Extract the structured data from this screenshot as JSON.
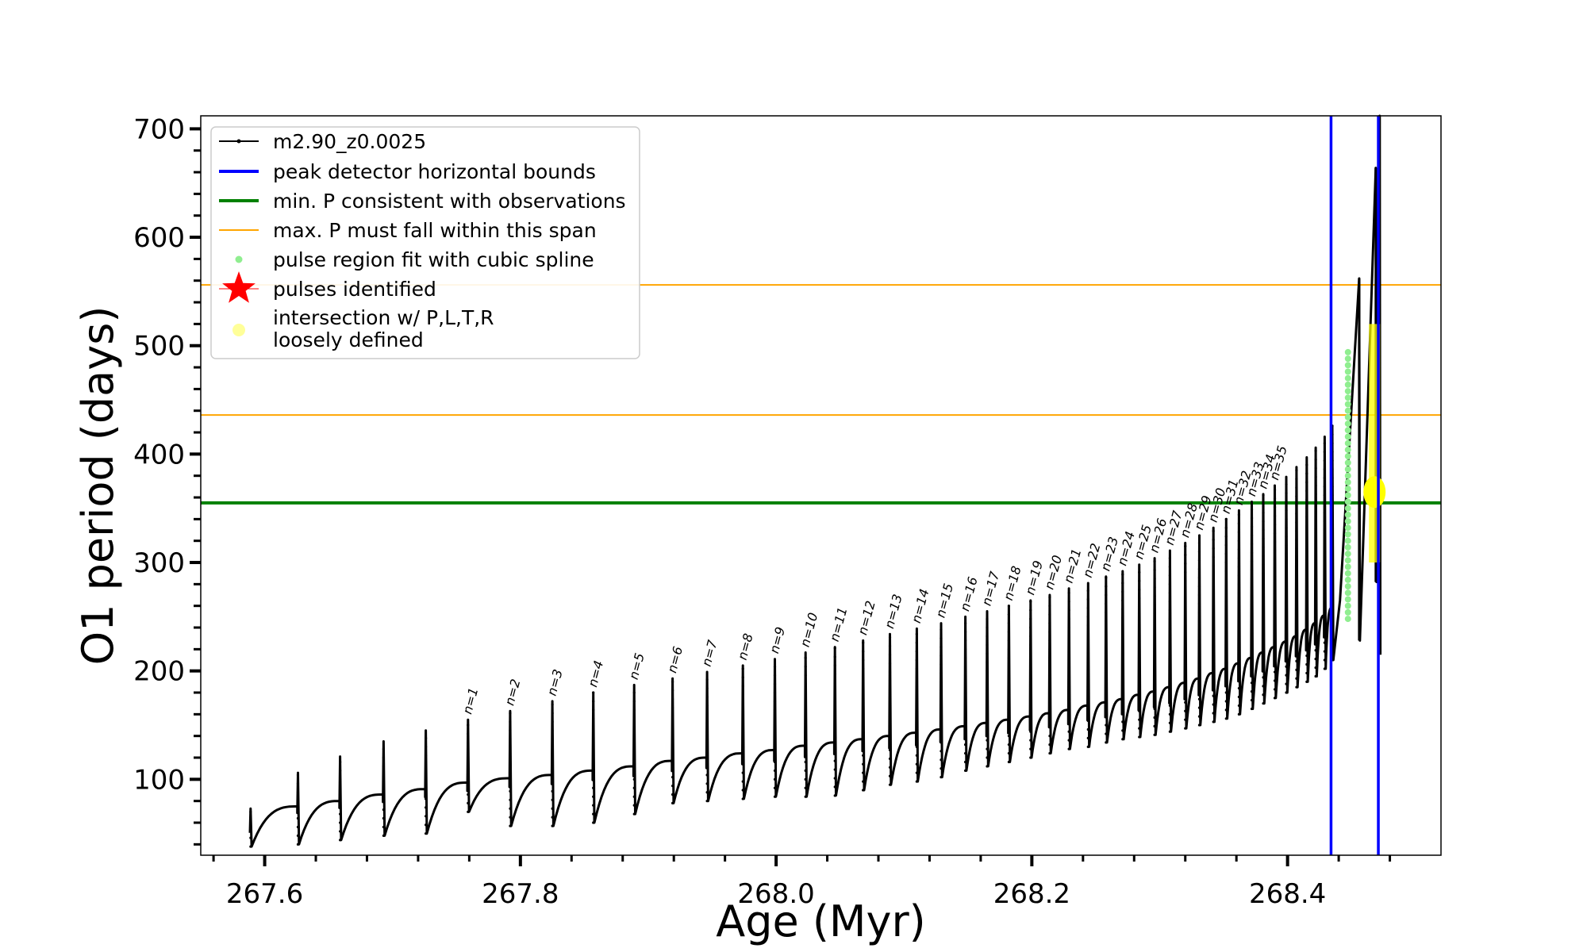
{
  "chart_data": {
    "type": "line",
    "title": "",
    "xlabel": "Age (Myr)",
    "ylabel": "O1 period (days)",
    "xlim": [
      267.55,
      268.52
    ],
    "ylim": [
      30,
      712
    ],
    "x_ticks": [
      {
        "value": 267.6,
        "label": "267.6"
      },
      {
        "value": 267.8,
        "label": "267.8"
      },
      {
        "value": 268.0,
        "label": "268.0"
      },
      {
        "value": 268.2,
        "label": "268.2"
      },
      {
        "value": 268.4,
        "label": "268.4"
      }
    ],
    "y_ticks": [
      {
        "value": 100,
        "label": "100"
      },
      {
        "value": 200,
        "label": "200"
      },
      {
        "value": 300,
        "label": "300"
      },
      {
        "value": 400,
        "label": "400"
      },
      {
        "value": 500,
        "label": "500"
      },
      {
        "value": 600,
        "label": "600"
      },
      {
        "value": 700,
        "label": "700"
      }
    ],
    "grid": false,
    "legend_position": "top-left",
    "series": [
      {
        "name": "m2.90_z0.0025",
        "color": "#000000",
        "kind": "line-with-points"
      },
      {
        "name": "peak detector horizontal bounds",
        "color": "#0000ff",
        "kind": "vline",
        "values": [
          268.434,
          268.471
        ]
      },
      {
        "name": "min. P consistent with observations",
        "color": "#008000",
        "kind": "hline",
        "values": [
          355
        ]
      },
      {
        "name": "max. P must fall within this span",
        "color": "#ffa500",
        "kind": "hline",
        "values": [
          436,
          556
        ]
      },
      {
        "name": "pulse region fit with cubic spline",
        "color": "#90ee90",
        "kind": "marker-dot"
      },
      {
        "name": "pulses identified",
        "color": "#ff0000",
        "kind": "marker-star"
      },
      {
        "name": "intersection w/ P,L,T,R\nloosely defined",
        "color": "#ffff99",
        "kind": "marker-dot"
      }
    ],
    "pulses": [
      {
        "n": "n=1",
        "age": 267.759,
        "peak": 155,
        "pre": 97,
        "dip": 70
      },
      {
        "n": "n=2",
        "age": 267.792,
        "peak": 163,
        "pre": 101,
        "dip": 57
      },
      {
        "n": "n=3",
        "age": 267.825,
        "peak": 172,
        "pre": 104,
        "dip": 57
      },
      {
        "n": "n=4",
        "age": 267.857,
        "peak": 180,
        "pre": 108,
        "dip": 60
      },
      {
        "n": "n=5",
        "age": 267.889,
        "peak": 187,
        "pre": 112,
        "dip": 68
      },
      {
        "n": "n=6",
        "age": 267.919,
        "peak": 193,
        "pre": 117,
        "dip": 78
      },
      {
        "n": "n=7",
        "age": 267.946,
        "peak": 199,
        "pre": 120,
        "dip": 80
      },
      {
        "n": "n=8",
        "age": 267.974,
        "peak": 205,
        "pre": 124,
        "dip": 82
      },
      {
        "n": "n=9",
        "age": 267.999,
        "peak": 211,
        "pre": 127,
        "dip": 84
      },
      {
        "n": "n=10",
        "age": 268.023,
        "peak": 217,
        "pre": 131,
        "dip": 84
      },
      {
        "n": "n=11",
        "age": 268.046,
        "peak": 222,
        "pre": 134,
        "dip": 85
      },
      {
        "n": "n=12",
        "age": 268.068,
        "peak": 228,
        "pre": 137,
        "dip": 90
      },
      {
        "n": "n=13",
        "age": 268.089,
        "peak": 234,
        "pre": 140,
        "dip": 95
      },
      {
        "n": "n=14",
        "age": 268.11,
        "peak": 239,
        "pre": 143,
        "dip": 98
      },
      {
        "n": "n=15",
        "age": 268.129,
        "peak": 244,
        "pre": 146,
        "dip": 102
      },
      {
        "n": "n=16",
        "age": 268.148,
        "peak": 250,
        "pre": 149,
        "dip": 108
      },
      {
        "n": "n=17",
        "age": 268.165,
        "peak": 255,
        "pre": 152,
        "dip": 112
      },
      {
        "n": "n=18",
        "age": 268.182,
        "peak": 260,
        "pre": 155,
        "dip": 116
      },
      {
        "n": "n=19",
        "age": 268.199,
        "peak": 265,
        "pre": 158,
        "dip": 120
      },
      {
        "n": "n=20",
        "age": 268.214,
        "peak": 270,
        "pre": 161,
        "dip": 124
      },
      {
        "n": "n=21",
        "age": 268.229,
        "peak": 276,
        "pre": 164,
        "dip": 128
      },
      {
        "n": "n=22",
        "age": 268.244,
        "peak": 281,
        "pre": 168,
        "dip": 130
      },
      {
        "n": "n=23",
        "age": 268.258,
        "peak": 287,
        "pre": 171,
        "dip": 134
      },
      {
        "n": "n=24",
        "age": 268.271,
        "peak": 292,
        "pre": 174,
        "dip": 137
      },
      {
        "n": "n=25",
        "age": 268.284,
        "peak": 298,
        "pre": 178,
        "dip": 139
      },
      {
        "n": "n=26",
        "age": 268.296,
        "peak": 304,
        "pre": 181,
        "dip": 141
      },
      {
        "n": "n=27",
        "age": 268.308,
        "peak": 311,
        "pre": 185,
        "dip": 144
      },
      {
        "n": "n=28",
        "age": 268.32,
        "peak": 318,
        "pre": 189,
        "dip": 147
      },
      {
        "n": "n=29",
        "age": 268.331,
        "peak": 325,
        "pre": 193,
        "dip": 150
      },
      {
        "n": "n=30",
        "age": 268.342,
        "peak": 332,
        "pre": 198,
        "dip": 153
      },
      {
        "n": "n=31",
        "age": 268.352,
        "peak": 340,
        "pre": 202,
        "dip": 156
      },
      {
        "n": "n=32",
        "age": 268.362,
        "peak": 348,
        "pre": 207,
        "dip": 160
      },
      {
        "n": "n=33",
        "age": 268.372,
        "peak": 356,
        "pre": 212,
        "dip": 165
      },
      {
        "n": "n=34",
        "age": 268.381,
        "peak": 363,
        "pre": 217,
        "dip": 170
      },
      {
        "n": "n=35",
        "age": 268.39,
        "peak": 371,
        "pre": 222,
        "dip": 175
      }
    ],
    "extra_pulses": [
      {
        "age": 268.399,
        "peak": 379,
        "pre": 227,
        "dip": 180
      },
      {
        "age": 268.407,
        "peak": 388,
        "pre": 232,
        "dip": 185
      },
      {
        "age": 268.415,
        "peak": 397,
        "pre": 238,
        "dip": 190
      },
      {
        "age": 268.422,
        "peak": 406,
        "pre": 244,
        "dip": 195
      },
      {
        "age": 268.429,
        "peak": 416,
        "pre": 251,
        "dip": 202
      },
      {
        "age": 268.435,
        "peak": 426,
        "pre": 258,
        "dip": 210
      }
    ],
    "pulse_label_text": [
      {
        "text": "n=1",
        "age": 267.759
      },
      {
        "text": "n=2",
        "age": 267.792
      },
      {
        "text": "n=3",
        "age": 267.825
      },
      {
        "text": "n=4",
        "age": 267.857
      },
      {
        "text": "n=5",
        "age": 267.889
      },
      {
        "text": "n=6",
        "age": 267.919
      },
      {
        "text": "n=7",
        "age": 267.946
      },
      {
        "text": "n=8",
        "age": 267.974
      },
      {
        "text": "n=9",
        "age": 267.999
      },
      {
        "text": "n=10",
        "age": 268.023
      },
      {
        "text": "n=11",
        "age": 268.046
      },
      {
        "text": "n=12",
        "age": 268.068
      },
      {
        "text": "n=13",
        "age": 268.089
      },
      {
        "text": "n=14",
        "age": 268.11
      },
      {
        "text": "n=15",
        "age": 268.129
      },
      {
        "text": "n=16",
        "age": 268.148
      },
      {
        "text": "n=17",
        "age": 268.165
      },
      {
        "text": "n=18",
        "age": 268.182
      },
      {
        "text": "n=19",
        "age": 268.199
      },
      {
        "text": "n=20",
        "age": 268.214
      },
      {
        "text": "n=21",
        "age": 268.229
      },
      {
        "text": "n=22",
        "age": 268.244
      },
      {
        "text": "n=23",
        "age": 268.258
      },
      {
        "text": "n=24",
        "age": 268.271
      },
      {
        "text": "n=25",
        "age": 268.284
      },
      {
        "text": "n=26",
        "age": 268.296
      },
      {
        "text": "n=27",
        "age": 268.308
      },
      {
        "text": "n=28",
        "age": 268.32
      },
      {
        "text": "n=29",
        "age": 268.331
      },
      {
        "text": "n=30",
        "age": 268.342
      },
      {
        "text": "n=31",
        "age": 268.352
      },
      {
        "text": "n=32",
        "age": 268.362
      },
      {
        "text": "n=33",
        "age": 268.372
      },
      {
        "text": "n=34",
        "age": 268.381
      },
      {
        "text": "n=35",
        "age": 268.39
      }
    ],
    "pre_pulses": [
      {
        "age": 267.589,
        "peak": 73,
        "pre": 55,
        "dip": 38
      },
      {
        "age": 267.626,
        "peak": 106,
        "pre": 75,
        "dip": 40
      },
      {
        "age": 267.659,
        "peak": 121,
        "pre": 80,
        "dip": 44
      },
      {
        "age": 267.693,
        "peak": 135,
        "pre": 86,
        "dip": 48
      },
      {
        "age": 267.726,
        "peak": 145,
        "pre": 91,
        "dip": 50
      }
    ],
    "spline_region": {
      "age": 268.446,
      "p_min": 248,
      "p_max": 498,
      "color": "#90ee90"
    },
    "intersection_region": {
      "age": 268.468,
      "p_min": 300,
      "p_max": 520,
      "blob_p": 365,
      "color": "#ffff00"
    },
    "final_spikes": [
      {
        "age": 268.456,
        "peak": 562,
        "dip": 228
      },
      {
        "age": 268.469,
        "peak": 664,
        "dip": 282
      },
      {
        "age": 268.472,
        "peak": 712,
        "dip": 215
      }
    ]
  }
}
